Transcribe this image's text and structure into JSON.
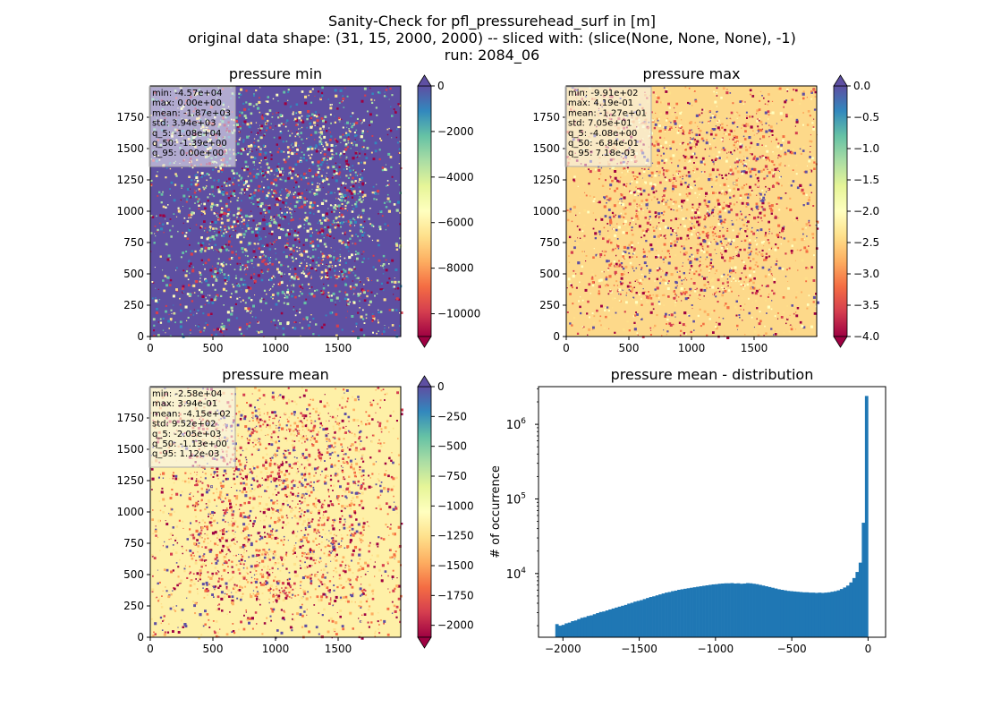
{
  "suptitle": {
    "line1": "Sanity-Check for pfl_pressurehead_surf in [m]",
    "line2": "original data shape: (31, 15, 2000, 2000) -- sliced with: (slice(None, None, None), -1)",
    "line3": "run: 2084_06"
  },
  "chart_data": [
    {
      "type": "heatmap",
      "title": "pressure min",
      "xlim": [
        0,
        2000
      ],
      "ylim": [
        0,
        2000
      ],
      "xticks": [
        0,
        500,
        1000,
        1500
      ],
      "yticks": [
        0,
        250,
        500,
        750,
        1000,
        1250,
        1500,
        1750
      ],
      "colormap": "Spectral",
      "colorbar": {
        "range": [
          -11000,
          0
        ],
        "ticks": [
          0,
          -2000,
          -4000,
          -6000,
          -8000,
          -10000
        ],
        "extend": "both"
      },
      "stats": [
        "min: -4.57e+04",
        "max: 0.00e+00",
        "mean: -1.87e+03",
        "std: 3.94e+03",
        "q_5: -1.08e+04",
        "q_50: -1.39e+00",
        "q_95: 0.00e+00"
      ],
      "dominant_color": "#5e4fa2"
    },
    {
      "type": "heatmap",
      "title": "pressure max",
      "xlim": [
        0,
        2000
      ],
      "ylim": [
        0,
        2000
      ],
      "xticks": [
        0,
        500,
        1000,
        1500
      ],
      "yticks": [
        0,
        250,
        500,
        750,
        1000,
        1250,
        1500,
        1750
      ],
      "colormap": "Spectral",
      "colorbar": {
        "range": [
          -4.0,
          0.0
        ],
        "ticks": [
          0.0,
          -0.5,
          -1.0,
          -1.5,
          -2.0,
          -2.5,
          -3.0,
          -3.5,
          -4.0
        ],
        "extend": "both"
      },
      "stats": [
        "min: -9.91e+02",
        "max: 4.19e-01",
        "mean: -1.27e+01",
        "std: 7.05e+01",
        "q_5: -4.08e+00",
        "q_50: -6.84e-01",
        "q_95: 7.18e-03"
      ],
      "dominant_color": "#fdd98a"
    },
    {
      "type": "heatmap",
      "title": "pressure mean",
      "xlim": [
        0,
        2000
      ],
      "ylim": [
        0,
        2000
      ],
      "xticks": [
        0,
        500,
        1000,
        1500
      ],
      "yticks": [
        0,
        250,
        500,
        750,
        1000,
        1250,
        1500,
        1750
      ],
      "colormap": "Spectral",
      "colorbar": {
        "range": [
          -2100,
          0
        ],
        "ticks": [
          0,
          -250,
          -500,
          -750,
          -1000,
          -1250,
          -1500,
          -1750,
          -2000
        ],
        "extend": "both"
      },
      "stats": [
        "min: -2.58e+04",
        "max: 3.94e-01",
        "mean: -4.15e+02",
        "std: 9.52e+02",
        "q_5: -2.05e+03",
        "q_50: -1.13e+00",
        "q_95: 1.12e-03"
      ],
      "dominant_color": "#fef0a7"
    },
    {
      "type": "bar",
      "title": "pressure mean - distribution",
      "ylabel": "# of occurrence",
      "yscale": "log",
      "xlim": [
        -2160,
        115
      ],
      "ylim": [
        1400,
        3200000
      ],
      "xticks": [
        -2000,
        -1500,
        -1000,
        -500,
        0
      ],
      "yticks": [
        10000,
        100000,
        1000000
      ],
      "color": "#1f77b4",
      "bins": {
        "start": -2050,
        "end": 0,
        "count": 100
      },
      "values": [
        2100,
        2000,
        2050,
        2150,
        2200,
        2300,
        2350,
        2450,
        2550,
        2600,
        2700,
        2750,
        2850,
        2950,
        3050,
        3100,
        3200,
        3300,
        3400,
        3500,
        3600,
        3700,
        3800,
        3950,
        4050,
        4200,
        4300,
        4400,
        4550,
        4700,
        4850,
        4950,
        5100,
        5250,
        5400,
        5550,
        5650,
        5800,
        5900,
        6050,
        6150,
        6250,
        6350,
        6450,
        6550,
        6650,
        6750,
        6850,
        6950,
        7050,
        7150,
        7200,
        7300,
        7350,
        7400,
        7400,
        7450,
        7350,
        7400,
        7300,
        7350,
        7450,
        7400,
        7300,
        7200,
        7050,
        6900,
        6750,
        6600,
        6450,
        6300,
        6150,
        6050,
        5950,
        5850,
        5800,
        5750,
        5700,
        5650,
        5600,
        5600,
        5550,
        5550,
        5500,
        5550,
        5500,
        5550,
        5600,
        5700,
        5800,
        5950,
        6200,
        6500,
        6900,
        7600,
        8700,
        10500,
        14000,
        48000,
        2400000
      ]
    }
  ]
}
